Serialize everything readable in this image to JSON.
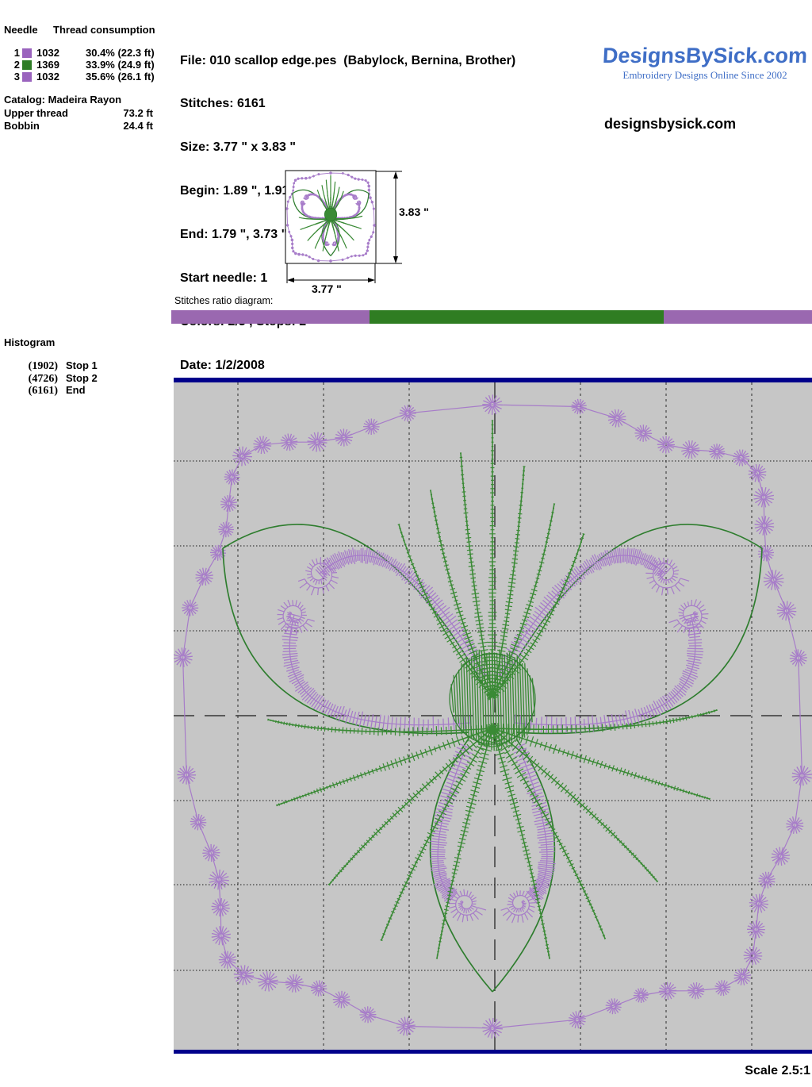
{
  "colors": {
    "stitch_purple": "#a77cc9",
    "stitch_green": "#3a8a35",
    "outline_green": "#2e7d2e",
    "bar_purple": "#9a68b0",
    "bar_green": "#2f7d22",
    "navy": "#00008b",
    "grid_bg": "#c6c6c6",
    "grid_line": "#1a1a1a",
    "logo_blue": "#3f6ec6"
  },
  "thread_panel": {
    "col_needle": "Needle",
    "col_consumption": "Thread consumption",
    "rows": [
      {
        "needle": "1",
        "color": "#9a63be",
        "code": "1032",
        "usage": "30.4% (22.3 ft)"
      },
      {
        "needle": "2",
        "color": "#2e7d26",
        "code": "1369",
        "usage": "33.9% (24.9 ft)"
      },
      {
        "needle": "3",
        "color": "#9a63be",
        "code": "1032",
        "usage": "35.6% (26.1 ft)"
      }
    ],
    "catalog": "Catalog: Madeira Rayon",
    "upper_thread_label": "Upper thread",
    "upper_thread_value": "73.2 ft",
    "bobbin_label": "Bobbin",
    "bobbin_value": "24.4 ft"
  },
  "file_info": {
    "lines": [
      "File: 010 scallop edge.pes  (Babylock, Bernina, Brother)",
      "Stitches: 6161",
      "Size: 3.77 \" x 3.83 \"",
      "Begin: 1.89 \", 1.91 \"",
      "End: 1.79 \", 3.73 \"",
      "Start needle: 1",
      "Colors: 2/3 , Stops: 2",
      "Date: 1/2/2008"
    ]
  },
  "logo": {
    "brand": "DesignsBySick.com",
    "tagline": "Embroidery Designs Online Since 2002",
    "website": "designsbysick.com"
  },
  "thumbnail": {
    "height_label": "3.83 \"",
    "width_label": "3.77 \""
  },
  "ratio_diagram": {
    "label": "Stitches ratio diagram:",
    "segments": [
      {
        "color_key": "bar_purple",
        "percent": 30.9
      },
      {
        "color_key": "bar_green",
        "percent": 45.9
      },
      {
        "color_key": "bar_purple",
        "percent": 23.2
      }
    ]
  },
  "histogram": {
    "title": "Histogram",
    "entries": [
      {
        "count": "(1902)",
        "label": "Stop 1"
      },
      {
        "count": "(4726)",
        "label": "Stop 2"
      },
      {
        "count": "(6161)",
        "label": "End"
      }
    ]
  },
  "scale_label": "Scale 2.5:1"
}
